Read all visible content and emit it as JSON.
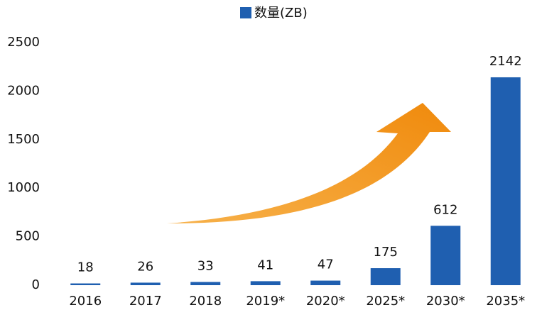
{
  "chart_data": {
    "type": "bar",
    "categories": [
      "2016",
      "2017",
      "2018",
      "2019*",
      "2020*",
      "2025*",
      "2030*",
      "2035*"
    ],
    "series": [
      {
        "name": "数量(ZB)",
        "color": "#1f5fb0",
        "values": [
          18,
          26,
          33,
          41,
          47,
          175,
          612,
          2142
        ]
      }
    ],
    "ylim": [
      0,
      2500
    ],
    "yticks": [
      0,
      500,
      1000,
      1500,
      2000,
      2500
    ],
    "grid": false,
    "legend": "top"
  }
}
